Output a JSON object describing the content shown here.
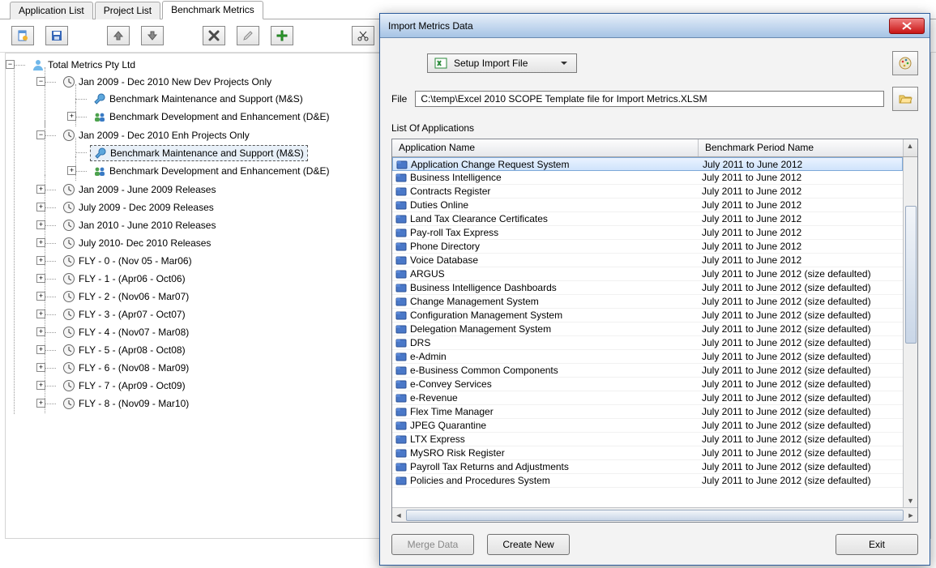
{
  "tabs": [
    {
      "label": "Application List",
      "active": false
    },
    {
      "label": "Project List",
      "active": false
    },
    {
      "label": "Benchmark Metrics",
      "active": true
    }
  ],
  "selected_tree_label": "Benchmark Maintenance and Support (M&S)",
  "tree": {
    "root": "Total Metrics Pty Ltd",
    "children": [
      {
        "label": "Jan 2009 - Dec 2010 New Dev Projects Only",
        "open": true,
        "icon": "clock",
        "children": [
          {
            "label": "Benchmark Maintenance and Support (M&S)",
            "icon": "wrench"
          },
          {
            "label": "Benchmark Development and Enhancement (D&E)",
            "icon": "people",
            "exp": "plus"
          }
        ]
      },
      {
        "label": "Jan 2009 - Dec 2010 Enh Projects Only",
        "open": true,
        "icon": "clock",
        "children": [
          {
            "label": "Benchmark Maintenance and Support (M&S)",
            "icon": "wrench",
            "selected": true
          },
          {
            "label": "Benchmark Development and Enhancement (D&E)",
            "icon": "people",
            "exp": "plus"
          }
        ]
      },
      {
        "label": "Jan 2009 - June 2009 Releases",
        "icon": "clock",
        "exp": "plus"
      },
      {
        "label": "July 2009 - Dec 2009 Releases",
        "icon": "clock",
        "exp": "plus"
      },
      {
        "label": "Jan 2010 - June 2010 Releases",
        "icon": "clock",
        "exp": "plus"
      },
      {
        "label": "July 2010- Dec 2010 Releases",
        "icon": "clock",
        "exp": "plus"
      },
      {
        "label": "FLY - 0 - (Nov 05 - Mar06)",
        "icon": "clock",
        "exp": "plus"
      },
      {
        "label": "FLY - 1 - (Apr06 - Oct06)",
        "icon": "clock",
        "exp": "plus"
      },
      {
        "label": "FLY - 2 - (Nov06 - Mar07)",
        "icon": "clock",
        "exp": "plus"
      },
      {
        "label": "FLY - 3 - (Apr07 - Oct07)",
        "icon": "clock",
        "exp": "plus"
      },
      {
        "label": "FLY - 4 - (Nov07 - Mar08)",
        "icon": "clock",
        "exp": "plus"
      },
      {
        "label": "FLY - 5 - (Apr08 - Oct08)",
        "icon": "clock",
        "exp": "plus"
      },
      {
        "label": "FLY - 6 - (Nov08 - Mar09)",
        "icon": "clock",
        "exp": "plus"
      },
      {
        "label": "FLY - 7 - (Apr09 - Oct09)",
        "icon": "clock",
        "exp": "plus"
      },
      {
        "label": "FLY - 8 - (Nov09 - Mar10)",
        "icon": "clock",
        "exp": "plus"
      }
    ]
  },
  "dialog": {
    "title": "Import Metrics Data",
    "setup_button": "Setup Import File",
    "file_label": "File",
    "file_value": "C:\\temp\\Excel 2010 SCOPE Template file for Import Metrics.XLSM",
    "list_label": "List Of Applications",
    "columns": {
      "name": "Application Name",
      "period": "Benchmark Period Name"
    },
    "rows": [
      {
        "name": "Application Change Request System",
        "period": "July 2011 to June 2012",
        "selected": true
      },
      {
        "name": "Business Intelligence",
        "period": "July 2011 to June 2012"
      },
      {
        "name": "Contracts Register",
        "period": "July 2011 to June 2012"
      },
      {
        "name": "Duties Online",
        "period": "July 2011 to June 2012"
      },
      {
        "name": "Land Tax Clearance Certificates",
        "period": "July 2011 to June 2012"
      },
      {
        "name": "Pay-roll Tax Express",
        "period": "July 2011 to June 2012"
      },
      {
        "name": "Phone Directory",
        "period": "July 2011 to June 2012"
      },
      {
        "name": "Voice Database",
        "period": "July 2011 to June 2012"
      },
      {
        "name": "ARGUS",
        "period": "July 2011 to June 2012 (size defaulted)"
      },
      {
        "name": "Business Intelligence Dashboards",
        "period": "July 2011 to June 2012 (size defaulted)"
      },
      {
        "name": "Change Management System",
        "period": "July 2011 to June 2012 (size defaulted)"
      },
      {
        "name": "Configuration Management System",
        "period": "July 2011 to June 2012 (size defaulted)"
      },
      {
        "name": "Delegation Management System",
        "period": "July 2011 to June 2012 (size defaulted)"
      },
      {
        "name": "DRS",
        "period": "July 2011 to June 2012 (size defaulted)"
      },
      {
        "name": "e-Admin",
        "period": "July 2011 to June 2012 (size defaulted)"
      },
      {
        "name": "e-Business Common Components",
        "period": "July 2011 to June 2012 (size defaulted)"
      },
      {
        "name": "e-Convey Services",
        "period": "July 2011 to June 2012 (size defaulted)"
      },
      {
        "name": "e-Revenue",
        "period": "July 2011 to June 2012 (size defaulted)"
      },
      {
        "name": "Flex Time Manager",
        "period": "July 2011 to June 2012 (size defaulted)"
      },
      {
        "name": "JPEG Quarantine",
        "period": "July 2011 to June 2012 (size defaulted)"
      },
      {
        "name": "LTX Express",
        "period": "July 2011 to June 2012 (size defaulted)"
      },
      {
        "name": "MySRO Risk Register",
        "period": "July 2011 to June 2012 (size defaulted)"
      },
      {
        "name": "Payroll Tax Returns and Adjustments",
        "period": "July 2011 to June 2012 (size defaulted)"
      },
      {
        "name": "Policies and Procedures System",
        "period": "July 2011 to June 2012 (size defaulted)"
      }
    ],
    "buttons": {
      "merge": "Merge Data",
      "create": "Create New",
      "exit": "Exit"
    }
  },
  "colors": {
    "dialog_border": "#2a5a9a",
    "titlebar_grad_top": "#e8f0f9",
    "titlebar_grad_bottom": "#a6c4e5",
    "grid_row_selected_top": "#eaf3ff",
    "grid_row_selected_bottom": "#cfe3fb",
    "close_btn": "#c81414"
  }
}
